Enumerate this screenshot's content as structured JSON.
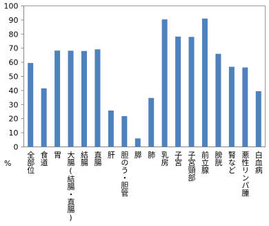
{
  "chart_data": {
    "type": "bar",
    "y_label": "%",
    "categories": [
      "全部位",
      "食道",
      "胃",
      "大腸(結腸・直腸)",
      "結腸",
      "直腸",
      "肝",
      "胆のう・胆管",
      "膵",
      "肺",
      "乳房",
      "子宮",
      "子宮頸部",
      "前立腺",
      "膀胱",
      "腎など",
      "悪性リンパ腫",
      "白血病"
    ],
    "values": [
      59.5,
      41.5,
      68.3,
      68.2,
      68,
      69.2,
      25.8,
      21.8,
      6,
      34.7,
      90.4,
      78.2,
      78,
      91,
      66,
      56.8,
      56.3,
      39.5
    ],
    "color": "#4f81bd",
    "ylim": [
      0,
      100
    ],
    "yticks": [
      0,
      10,
      20,
      30,
      40,
      50,
      60,
      70,
      80,
      90,
      100
    ],
    "grid": false
  }
}
